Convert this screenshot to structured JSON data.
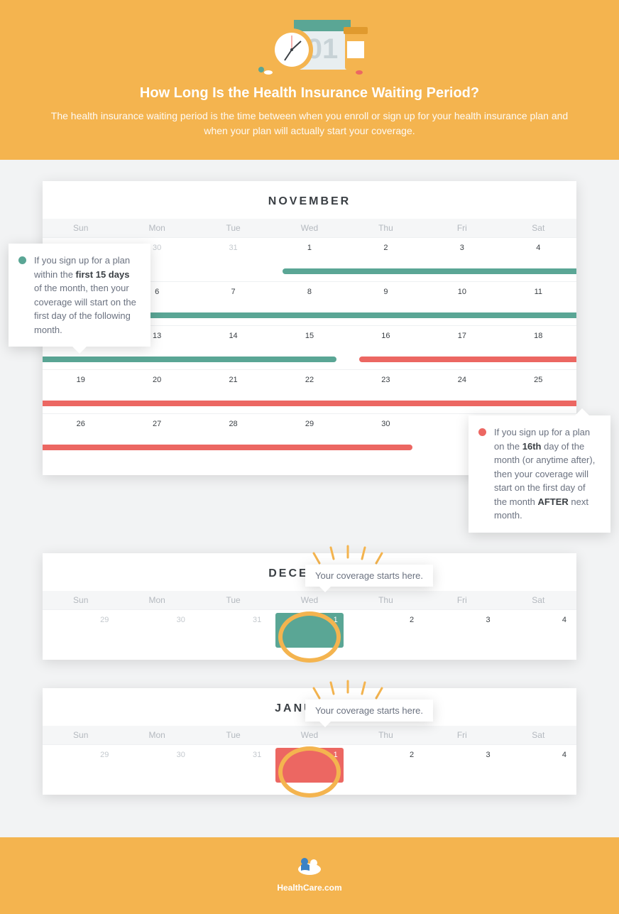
{
  "colors": {
    "accent_orange": "#f4b44f",
    "teal": "#5aa695",
    "coral": "#ec6762",
    "content_bg": "#f2f3f4",
    "text_gray": "#6b7280",
    "text_dark": "#3a3f44",
    "text_light": "#b4b9bf",
    "white": "#ffffff"
  },
  "hero": {
    "title": "How Long Is the Health Insurance Waiting Period?",
    "subtitle": "The health insurance waiting period is the time between when you enroll or sign up for your health insurance plan and when your plan will actually start your coverage."
  },
  "dow": [
    "Sun",
    "Mon",
    "Tue",
    "Wed",
    "Thu",
    "Fri",
    "Sat"
  ],
  "november": {
    "title": "NOVEMBER",
    "weeks": [
      {
        "days": [
          "",
          "30",
          "31",
          "1",
          "2",
          "3",
          "4"
        ],
        "pad": [
          0,
          1,
          2
        ],
        "bars": [
          {
            "color": "#5aa695",
            "start": 3,
            "end": 6,
            "lcap": true,
            "rcap": false
          }
        ]
      },
      {
        "days": [
          "",
          "6",
          "7",
          "8",
          "9",
          "10",
          "11"
        ],
        "pad": [],
        "bars": [
          {
            "color": "#5aa695",
            "start": 0,
            "end": 6,
            "lcap": false,
            "rcap": false
          }
        ]
      },
      {
        "days": [
          "",
          "13",
          "14",
          "15",
          "16",
          "17",
          "18"
        ],
        "pad": [],
        "bars": [
          {
            "color": "#5aa695",
            "start": 0,
            "end": 3,
            "lcap": false,
            "rcap": true
          },
          {
            "color": "#ec6762",
            "start": 4,
            "end": 6,
            "lcap": true,
            "rcap": false
          }
        ]
      },
      {
        "days": [
          "19",
          "20",
          "21",
          "22",
          "23",
          "24",
          "25"
        ],
        "pad": [],
        "bars": [
          {
            "color": "#ec6762",
            "start": 0,
            "end": 6,
            "lcap": false,
            "rcap": false
          }
        ]
      },
      {
        "days": [
          "26",
          "27",
          "28",
          "29",
          "30",
          "",
          ""
        ],
        "pad": [],
        "bars": [
          {
            "color": "#ec6762",
            "start": 0,
            "end": 4,
            "lcap": false,
            "rcap": true
          }
        ]
      }
    ]
  },
  "callout_teal": {
    "text_pre": "If you sign up for a plan within the ",
    "bold1": "first 15 days",
    "text_post": " of the month, then your coverage will start on the first day of the following month.",
    "dot_color": "#5aa695"
  },
  "callout_coral": {
    "text_pre": "If you sign up for a plan on the ",
    "bold1": "16th",
    "text_mid": " day of the month (or anytime after), then your coverage will start on the first day of the month ",
    "bold2": "AFTER",
    "text_post": " next month.",
    "dot_color": "#ec6762"
  },
  "december": {
    "title": "DECEMBER",
    "days": [
      "29",
      "30",
      "31",
      "1",
      "2",
      "3",
      "4"
    ],
    "pad": [
      0,
      1,
      2
    ],
    "highlight_index": 3,
    "highlight_color": "#5aa695",
    "popover": "Your coverage starts here."
  },
  "january": {
    "title": "JANUARY",
    "days": [
      "29",
      "30",
      "31",
      "1",
      "2",
      "3",
      "4"
    ],
    "pad": [
      0,
      1,
      2
    ],
    "highlight_index": 3,
    "highlight_color": "#ec6762",
    "popover": "Your coverage starts here."
  },
  "footer": {
    "brand": "HealthCare.com"
  }
}
